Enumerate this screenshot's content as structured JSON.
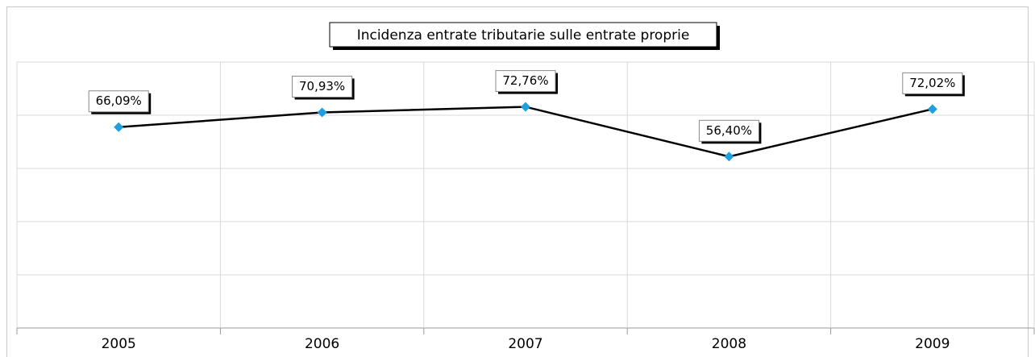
{
  "chart_data": {
    "type": "line",
    "title": "Incidenza entrate tributarie sulle entrate proprie",
    "categories": [
      "2005",
      "2006",
      "2007",
      "2008",
      "2009"
    ],
    "series": [
      {
        "color": "#000000",
        "marker_color": "#1ea0e0",
        "values": [
          66.09,
          70.93,
          72.76,
          56.4,
          72.02
        ],
        "value_labels": [
          "66,09%",
          "70,93%",
          "72,76%",
          "56,40%",
          "72,02%"
        ]
      }
    ],
    "ylim": [
      0,
      87.5
    ],
    "yticks": [
      0,
      17.5,
      35,
      52.5,
      70,
      87.5
    ],
    "grid": true
  }
}
